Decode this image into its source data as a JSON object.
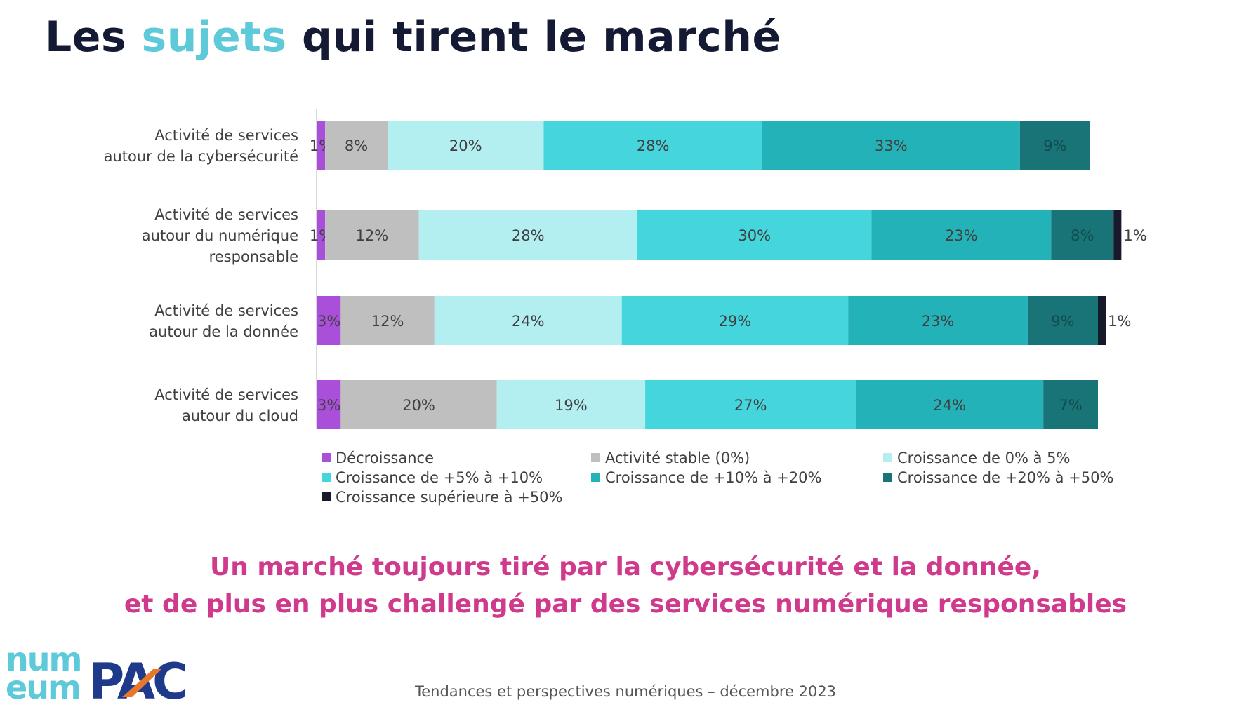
{
  "header": {
    "title_before": "Les",
    "title_accent": "sujets",
    "title_after": "qui tirent le marché"
  },
  "colors": {
    "title": "#141a33",
    "title_accent": "#5dc9d9",
    "subtitle": "#cf3a8c"
  },
  "chart_data": {
    "type": "bar",
    "orientation": "horizontal",
    "stacked": true,
    "normalized": true,
    "categories": [
      [
        "Activité de services",
        "autour de la cybersécurité"
      ],
      [
        "Activité de services",
        "autour du numérique",
        "responsable"
      ],
      [
        "Activité de services",
        "autour de la donnée"
      ],
      [
        "Activité de services",
        "autour du cloud"
      ]
    ],
    "series": [
      {
        "name": "Décroissance",
        "color": "#a94fd9",
        "values": [
          1,
          1,
          3,
          3
        ]
      },
      {
        "name": "Activité stable (0%)",
        "color": "#bfbfbf",
        "values": [
          8,
          12,
          12,
          20
        ]
      },
      {
        "name": "Croissance de 0% à 5%",
        "color": "#b3eff0",
        "values": [
          20,
          28,
          24,
          19
        ]
      },
      {
        "name": "Croissance de +5% à +10%",
        "color": "#45d6dd",
        "values": [
          28,
          30,
          29,
          27
        ]
      },
      {
        "name": "Croissance de +10% à +20%",
        "color": "#24b2b9",
        "values": [
          33,
          23,
          23,
          24
        ]
      },
      {
        "name": "Croissance de +20% à +50%",
        "color": "#187476",
        "values": [
          9,
          8,
          9,
          7
        ]
      },
      {
        "name": "Croissance supérieure à +50%",
        "color": "#161a2b",
        "values": [
          0,
          1,
          1,
          0
        ]
      }
    ],
    "value_suffix": "%",
    "legend_position": "bottom",
    "grid": false
  },
  "subtitle": {
    "line1": "Un marché toujours tiré par la cybersécurité et la donnée,",
    "line2": "et de plus en plus challengé par des services numérique responsables"
  },
  "footer": {
    "text": "Tendances et perspectives numériques – décembre 2023"
  },
  "logos": {
    "numeum": [
      "num",
      "eum"
    ],
    "pac": "PAC"
  }
}
